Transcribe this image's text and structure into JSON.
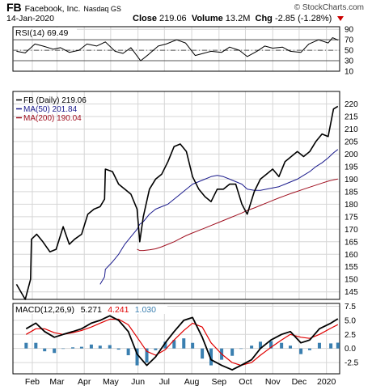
{
  "header": {
    "symbol": "FB",
    "company": "Facebook, Inc.",
    "exchange": "Nasdaq GS",
    "watermark": "© StockCharts.com",
    "date": "14-Jan-2020",
    "close_label": "Close",
    "close_value": "219.06",
    "volume_label": "Volume",
    "volume_value": "13.2M",
    "chg_label": "Chg",
    "chg_value": "-2.85 (-1.28%)"
  },
  "colors": {
    "price": "#000000",
    "ma50": "#1a1a8c",
    "ma200": "#a01020",
    "macd_line": "#000000",
    "signal": "#e00000",
    "histogram": "#3a7fb0",
    "grid": "#d6d6d6",
    "frame": "#000000",
    "background": "#ffffff"
  },
  "chart_data": [
    {
      "type": "line",
      "panel": "rsi",
      "legend": "RSI(14) 69.49",
      "ylim": [
        10,
        95
      ],
      "yticks": [
        "90",
        "70",
        "50",
        "30",
        "10"
      ],
      "reference_lines": [
        30,
        50,
        70
      ],
      "x": [
        "2019-01-14",
        "2019-01-24",
        "2019-02-04",
        "2019-02-13",
        "2019-02-25",
        "2019-03-05",
        "2019-03-15",
        "2019-03-26",
        "2019-04-04",
        "2019-04-15",
        "2019-04-25",
        "2019-05-06",
        "2019-05-15",
        "2019-05-24",
        "2019-06-04",
        "2019-06-13",
        "2019-06-24",
        "2019-07-03",
        "2019-07-15",
        "2019-07-25",
        "2019-08-05",
        "2019-08-14",
        "2019-08-23",
        "2019-09-04",
        "2019-09-13",
        "2019-09-24",
        "2019-10-03",
        "2019-10-14",
        "2019-10-23",
        "2019-11-01",
        "2019-11-12",
        "2019-11-21",
        "2019-12-03",
        "2019-12-12",
        "2019-12-23",
        "2020-01-03",
        "2020-01-08",
        "2020-01-14"
      ],
      "series": [
        {
          "values": [
            48,
            45,
            62,
            58,
            52,
            55,
            46,
            50,
            62,
            58,
            66,
            48,
            44,
            55,
            30,
            42,
            58,
            62,
            70,
            64,
            40,
            44,
            48,
            46,
            56,
            50,
            38,
            48,
            58,
            54,
            56,
            48,
            46,
            62,
            70,
            64,
            74,
            69.49
          ]
        }
      ]
    },
    {
      "type": "line",
      "panel": "price",
      "legend": [
        "FB (Daily) 219.06",
        "MA(50) 201.84",
        "MA(200) 190.04"
      ],
      "ylim": [
        142,
        225
      ],
      "yticks": [
        "220",
        "215",
        "210",
        "205",
        "200",
        "195",
        "190",
        "185",
        "180",
        "175",
        "170",
        "165",
        "160",
        "155",
        "150",
        "145"
      ],
      "xticks": [
        "Feb",
        "Mar",
        "Apr",
        "May",
        "Jun",
        "Jul",
        "Aug",
        "Sep",
        "Oct",
        "Nov",
        "Dec",
        "2020"
      ],
      "x": [
        "2019-01-14",
        "2019-01-24",
        "2019-01-30",
        "2019-01-31",
        "2019-02-06",
        "2019-02-13",
        "2019-02-21",
        "2019-02-28",
        "2019-03-08",
        "2019-03-15",
        "2019-03-21",
        "2019-03-29",
        "2019-04-05",
        "2019-04-12",
        "2019-04-19",
        "2019-04-24",
        "2019-04-25",
        "2019-05-03",
        "2019-05-10",
        "2019-05-17",
        "2019-05-24",
        "2019-05-31",
        "2019-06-03",
        "2019-06-07",
        "2019-06-14",
        "2019-06-21",
        "2019-06-28",
        "2019-07-05",
        "2019-07-12",
        "2019-07-19",
        "2019-07-26",
        "2019-08-02",
        "2019-08-09",
        "2019-08-16",
        "2019-08-23",
        "2019-08-30",
        "2019-09-06",
        "2019-09-13",
        "2019-09-20",
        "2019-09-27",
        "2019-10-03",
        "2019-10-11",
        "2019-10-18",
        "2019-10-25",
        "2019-11-01",
        "2019-11-08",
        "2019-11-15",
        "2019-11-22",
        "2019-11-29",
        "2019-12-06",
        "2019-12-13",
        "2019-12-20",
        "2019-12-27",
        "2020-01-03",
        "2020-01-09",
        "2020-01-14"
      ],
      "series": [
        {
          "name": "FB (Daily)",
          "values": [
            148,
            142,
            150,
            166,
            168,
            165,
            161,
            162,
            171,
            164,
            166,
            168,
            176,
            178,
            179,
            182,
            194,
            193,
            188,
            186,
            184,
            178,
            165,
            175,
            186,
            190,
            192,
            197,
            203,
            204,
            201,
            191,
            186,
            183,
            181,
            186,
            186,
            188,
            188,
            180,
            176,
            185,
            190,
            192,
            194,
            191,
            197,
            199,
            201,
            199,
            201,
            205,
            208,
            207,
            218,
            219.06
          ]
        },
        {
          "name": "MA(50)",
          "values": [
            null,
            null,
            null,
            null,
            null,
            null,
            null,
            null,
            null,
            null,
            null,
            null,
            null,
            null,
            148,
            151,
            154,
            157,
            160,
            164,
            167,
            170,
            172,
            173,
            176,
            178,
            179,
            180,
            182,
            184,
            186,
            188,
            189,
            190,
            191,
            191.5,
            191,
            190,
            189,
            188,
            186,
            185.5,
            185.5,
            186,
            186.5,
            187,
            188,
            189,
            190,
            191.5,
            193,
            195,
            196.5,
            198.5,
            200.5,
            201.84
          ]
        },
        {
          "name": "MA(200)",
          "values": [
            null,
            null,
            null,
            null,
            null,
            null,
            null,
            null,
            null,
            null,
            null,
            null,
            null,
            null,
            null,
            null,
            null,
            null,
            null,
            null,
            null,
            162,
            161.5,
            161.5,
            161.8,
            162.2,
            163,
            164,
            165,
            166.3,
            167.5,
            168.5,
            169.5,
            170.5,
            171.5,
            172.5,
            173.5,
            174.5,
            175.5,
            176.5,
            177.5,
            178.5,
            179.5,
            180.5,
            181.5,
            182.5,
            183.4,
            184.3,
            185.1,
            186,
            186.8,
            187.6,
            188.4,
            189.2,
            189.7,
            190.04
          ]
        }
      ]
    },
    {
      "type": "line",
      "panel": "macd",
      "legend": [
        "MACD(12,26,9)",
        "5.271",
        "4.241",
        "1.030"
      ],
      "ylim": [
        -4.5,
        8
      ],
      "yticks": [
        "7.5",
        "5.0",
        "2.5",
        "0.0",
        "-2.5"
      ],
      "xticks": [
        "Feb",
        "Mar",
        "Apr",
        "May",
        "Jun",
        "Jul",
        "Aug",
        "Sep",
        "Oct",
        "Nov",
        "Dec",
        "2020"
      ],
      "x": [
        "2019-01-25",
        "2019-02-05",
        "2019-02-15",
        "2019-02-26",
        "2019-03-08",
        "2019-03-19",
        "2019-03-29",
        "2019-04-09",
        "2019-04-19",
        "2019-04-30",
        "2019-05-10",
        "2019-05-21",
        "2019-05-31",
        "2019-06-11",
        "2019-06-21",
        "2019-07-02",
        "2019-07-12",
        "2019-07-23",
        "2019-08-02",
        "2019-08-13",
        "2019-08-23",
        "2019-09-04",
        "2019-09-16",
        "2019-09-26",
        "2019-10-08",
        "2019-10-18",
        "2019-10-30",
        "2019-11-11",
        "2019-11-21",
        "2019-12-03",
        "2019-12-13",
        "2019-12-24",
        "2020-01-06",
        "2020-01-14"
      ],
      "series": [
        {
          "name": "MACD",
          "values": [
            3.5,
            4.5,
            3.0,
            2.0,
            2.5,
            3.0,
            3.5,
            4.5,
            5.0,
            5.8,
            5.0,
            3.0,
            -1.0,
            -3.0,
            -1.5,
            1.0,
            3.0,
            5.0,
            5.5,
            2.0,
            -2.0,
            -3.0,
            -3.8,
            -3.0,
            -2.0,
            0.0,
            1.5,
            2.5,
            3.0,
            1.0,
            1.5,
            3.5,
            4.5,
            5.271
          ]
        },
        {
          "name": "Signal",
          "values": [
            2.5,
            3.5,
            3.5,
            2.8,
            2.5,
            2.8,
            3.2,
            3.8,
            4.5,
            5.2,
            5.2,
            4.2,
            2.0,
            -0.5,
            -1.2,
            -0.2,
            1.5,
            3.2,
            4.5,
            3.8,
            1.0,
            -1.0,
            -2.5,
            -3.0,
            -2.5,
            -1.2,
            0.2,
            1.5,
            2.5,
            2.0,
            1.8,
            2.5,
            3.6,
            4.241
          ]
        },
        {
          "name": "Histogram",
          "values": [
            1.0,
            1.0,
            -0.5,
            -0.8,
            0.0,
            0.2,
            0.3,
            0.7,
            0.5,
            0.6,
            -0.2,
            -1.2,
            -3.0,
            -2.5,
            -0.3,
            1.2,
            1.5,
            1.8,
            1.0,
            -1.8,
            -3.0,
            -2.0,
            -1.3,
            0.0,
            0.5,
            1.2,
            1.3,
            1.0,
            0.5,
            -1.0,
            -0.3,
            1.0,
            0.9,
            1.03
          ]
        }
      ]
    }
  ]
}
